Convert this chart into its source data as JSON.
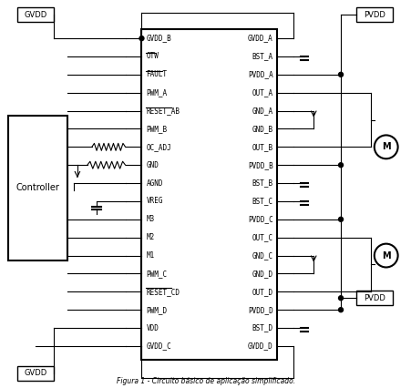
{
  "fig_width": 4.52,
  "fig_height": 4.26,
  "dpi": 100,
  "bg_color": "#ffffff",
  "line_color": "#000000",
  "dark_red": "#8B0000",
  "ic_left_pins": [
    "GVDD_B",
    "OTW",
    "FAULT",
    "PWM_A",
    "RESET_AB",
    "PWM_B",
    "OC_ADJ",
    "GND",
    "AGND",
    "VREG",
    "M3",
    "M2",
    "M1",
    "PWM_C",
    "RESET_CD",
    "PWM_D",
    "VDD",
    "GVDD_C"
  ],
  "ic_right_pins": [
    "GVDD_A",
    "BST_A",
    "PVDD_A",
    "OUT_A",
    "GND_A",
    "GND_B",
    "OUT_B",
    "PVDD_B",
    "BST_B",
    "BST_C",
    "PVDD_C",
    "OUT_C",
    "GND_C",
    "GND_D",
    "OUT_D",
    "PVDD_D",
    "BST_D",
    "GVDD_D"
  ],
  "overline_left": [
    "OTW",
    "FAULT",
    "RESET_AB",
    "RESET_CD"
  ],
  "caption": "Figura 1 - Circuito básico de aplicação simplificado."
}
